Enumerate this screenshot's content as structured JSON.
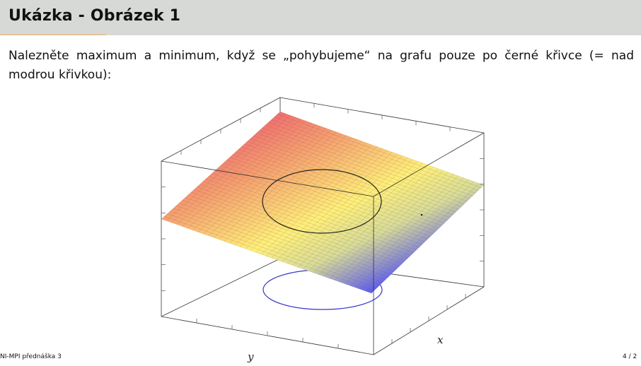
{
  "slide": {
    "title": "Ukázka - Obrázek 1",
    "text": "Nalezněte maximum a minimum, když se „pohybujeme“ na grafu pouze po černé křivce (= nad modrou křivkou):"
  },
  "plot": {
    "x_axis_label": "x",
    "y_axis_label": "y",
    "colors": {
      "high": "#f07070",
      "mid": "#fff07a",
      "low": "#5a5af0",
      "curve_black": "#222222",
      "curve_blue": "#3333cc"
    }
  },
  "footer": {
    "left": "NI-MPI přednáška 3",
    "right": "4 / 2"
  }
}
